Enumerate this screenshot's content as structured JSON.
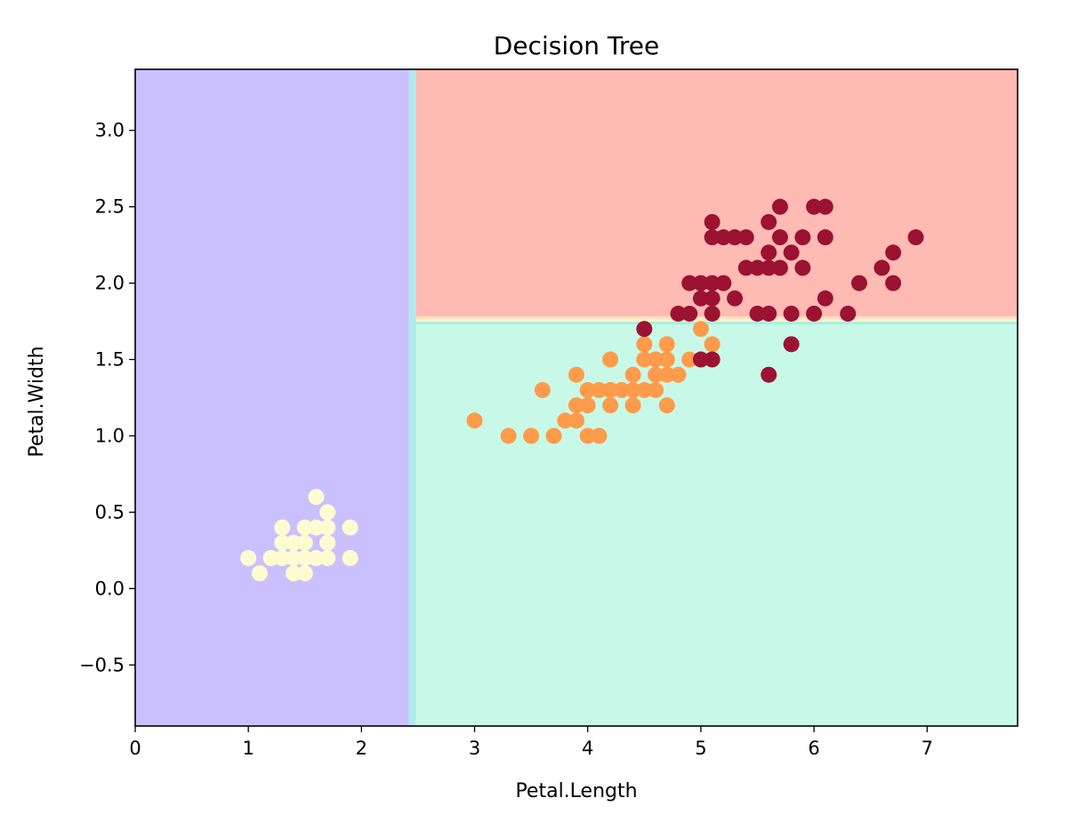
{
  "chart_data": {
    "type": "scatter",
    "title": "Decision Tree",
    "xlabel": "Petal.Length",
    "ylabel": "Petal.Width",
    "xlim": [
      0,
      7.8
    ],
    "ylim": [
      -0.9,
      3.4
    ],
    "xticks": [
      0,
      1,
      2,
      3,
      4,
      5,
      6,
      7
    ],
    "xtick_labels": [
      "0",
      "1",
      "2",
      "3",
      "4",
      "5",
      "6",
      "7"
    ],
    "yticks": [
      -0.5,
      0.0,
      0.5,
      1.0,
      1.5,
      2.0,
      2.5,
      3.0
    ],
    "ytick_labels": [
      "−0.5",
      "0.0",
      "0.5",
      "1.0",
      "1.5",
      "2.0",
      "2.5",
      "3.0"
    ],
    "grid": false,
    "decision_regions": [
      {
        "class": 0,
        "color": "#cbc0ff",
        "x": [
          -1,
          2.45
        ],
        "y": [
          -1,
          4
        ]
      },
      {
        "class": 1,
        "color": "#c8f9e8",
        "x": [
          2.45,
          9
        ],
        "y": [
          -1,
          1.75
        ]
      },
      {
        "class": 2,
        "color": "#ffbab4",
        "x": [
          2.45,
          9
        ],
        "y": [
          1.75,
          4
        ]
      }
    ],
    "boundary_edge_colors": [
      "#b8e6ff",
      "#a8f0e0",
      "#fff4c8",
      "#ffe2c0"
    ],
    "series": [
      {
        "class": 0,
        "color": "#fffbd0",
        "points": [
          [
            1.0,
            0.2
          ],
          [
            1.1,
            0.1
          ],
          [
            1.2,
            0.2
          ],
          [
            1.3,
            0.2
          ],
          [
            1.3,
            0.3
          ],
          [
            1.3,
            0.4
          ],
          [
            1.4,
            0.1
          ],
          [
            1.4,
            0.2
          ],
          [
            1.4,
            0.3
          ],
          [
            1.5,
            0.1
          ],
          [
            1.5,
            0.2
          ],
          [
            1.5,
            0.3
          ],
          [
            1.5,
            0.4
          ],
          [
            1.6,
            0.2
          ],
          [
            1.6,
            0.4
          ],
          [
            1.6,
            0.6
          ],
          [
            1.7,
            0.2
          ],
          [
            1.7,
            0.3
          ],
          [
            1.7,
            0.4
          ],
          [
            1.7,
            0.5
          ],
          [
            1.9,
            0.2
          ],
          [
            1.9,
            0.4
          ]
        ]
      },
      {
        "class": 1,
        "color": "#ff9b4a",
        "points": [
          [
            3.0,
            1.1
          ],
          [
            3.3,
            1.0
          ],
          [
            3.5,
            1.0
          ],
          [
            3.6,
            1.3
          ],
          [
            3.7,
            1.0
          ],
          [
            3.8,
            1.1
          ],
          [
            3.9,
            1.1
          ],
          [
            3.9,
            1.2
          ],
          [
            3.9,
            1.4
          ],
          [
            4.0,
            1.0
          ],
          [
            4.0,
            1.2
          ],
          [
            4.0,
            1.3
          ],
          [
            4.1,
            1.0
          ],
          [
            4.1,
            1.3
          ],
          [
            4.2,
            1.2
          ],
          [
            4.2,
            1.3
          ],
          [
            4.2,
            1.5
          ],
          [
            4.3,
            1.3
          ],
          [
            4.4,
            1.2
          ],
          [
            4.4,
            1.3
          ],
          [
            4.4,
            1.4
          ],
          [
            4.5,
            1.3
          ],
          [
            4.5,
            1.5
          ],
          [
            4.5,
            1.6
          ],
          [
            4.6,
            1.3
          ],
          [
            4.6,
            1.4
          ],
          [
            4.6,
            1.5
          ],
          [
            4.7,
            1.2
          ],
          [
            4.7,
            1.4
          ],
          [
            4.7,
            1.5
          ],
          [
            4.7,
            1.6
          ],
          [
            4.8,
            1.4
          ],
          [
            4.9,
            1.5
          ],
          [
            5.0,
            1.7
          ],
          [
            5.1,
            1.6
          ]
        ]
      },
      {
        "class": 2,
        "color": "#9c1232",
        "points": [
          [
            4.5,
            1.7
          ],
          [
            4.8,
            1.8
          ],
          [
            4.9,
            1.8
          ],
          [
            4.9,
            2.0
          ],
          [
            5.0,
            1.5
          ],
          [
            5.0,
            1.9
          ],
          [
            5.0,
            2.0
          ],
          [
            5.1,
            1.5
          ],
          [
            5.1,
            1.8
          ],
          [
            5.1,
            1.9
          ],
          [
            5.1,
            2.0
          ],
          [
            5.1,
            2.3
          ],
          [
            5.1,
            2.4
          ],
          [
            5.2,
            2.0
          ],
          [
            5.2,
            2.3
          ],
          [
            5.3,
            1.9
          ],
          [
            5.3,
            2.3
          ],
          [
            5.4,
            2.1
          ],
          [
            5.4,
            2.3
          ],
          [
            5.5,
            1.8
          ],
          [
            5.5,
            2.1
          ],
          [
            5.6,
            1.4
          ],
          [
            5.6,
            1.8
          ],
          [
            5.6,
            2.1
          ],
          [
            5.6,
            2.2
          ],
          [
            5.6,
            2.4
          ],
          [
            5.7,
            2.1
          ],
          [
            5.7,
            2.3
          ],
          [
            5.7,
            2.5
          ],
          [
            5.8,
            1.6
          ],
          [
            5.8,
            1.8
          ],
          [
            5.8,
            2.2
          ],
          [
            5.9,
            2.1
          ],
          [
            5.9,
            2.3
          ],
          [
            6.0,
            1.8
          ],
          [
            6.0,
            2.5
          ],
          [
            6.1,
            1.9
          ],
          [
            6.1,
            2.3
          ],
          [
            6.1,
            2.5
          ],
          [
            6.3,
            1.8
          ],
          [
            6.4,
            2.0
          ],
          [
            6.6,
            2.1
          ],
          [
            6.7,
            2.0
          ],
          [
            6.7,
            2.2
          ],
          [
            6.9,
            2.3
          ]
        ]
      }
    ]
  }
}
